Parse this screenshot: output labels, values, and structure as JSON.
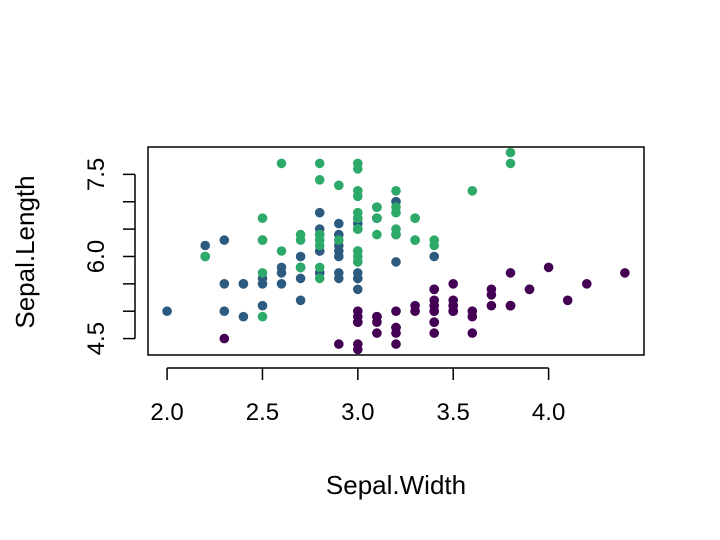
{
  "chart_data": {
    "type": "scatter",
    "title": "",
    "xlabel": "Sepal.Width",
    "ylabel": "Sepal.Length",
    "xlim": [
      1.9,
      4.5
    ],
    "ylim": [
      4.2,
      8.0
    ],
    "x_ticks": [
      "2.0",
      "2.5",
      "3.0",
      "3.5",
      "4.0"
    ],
    "y_ticks": [
      "4.5",
      "6.0",
      "7.5"
    ],
    "grid": false,
    "legend": "none",
    "series": [
      {
        "color": "#440154",
        "points": [
          [
            3.5,
            5.1
          ],
          [
            3.0,
            4.9
          ],
          [
            3.2,
            4.7
          ],
          [
            3.1,
            4.6
          ],
          [
            3.6,
            5.0
          ],
          [
            3.9,
            5.4
          ],
          [
            3.4,
            4.6
          ],
          [
            3.4,
            5.0
          ],
          [
            2.9,
            4.4
          ],
          [
            3.1,
            4.9
          ],
          [
            3.7,
            5.4
          ],
          [
            3.4,
            4.8
          ],
          [
            3.0,
            4.8
          ],
          [
            3.0,
            4.3
          ],
          [
            4.0,
            5.8
          ],
          [
            4.4,
            5.7
          ],
          [
            3.9,
            5.4
          ],
          [
            3.5,
            5.1
          ],
          [
            3.8,
            5.7
          ],
          [
            3.8,
            5.1
          ],
          [
            3.4,
            5.4
          ],
          [
            3.7,
            5.1
          ],
          [
            3.6,
            4.6
          ],
          [
            3.3,
            5.1
          ],
          [
            3.4,
            4.8
          ],
          [
            3.0,
            5.0
          ],
          [
            3.4,
            5.0
          ],
          [
            3.5,
            5.2
          ],
          [
            3.4,
            5.2
          ],
          [
            3.2,
            4.7
          ],
          [
            3.1,
            4.8
          ],
          [
            3.4,
            5.4
          ],
          [
            4.1,
            5.2
          ],
          [
            4.2,
            5.5
          ],
          [
            3.1,
            4.9
          ],
          [
            3.2,
            5.0
          ],
          [
            3.5,
            5.5
          ],
          [
            3.6,
            4.9
          ],
          [
            3.0,
            4.4
          ],
          [
            3.4,
            5.1
          ],
          [
            3.5,
            5.0
          ],
          [
            2.3,
            4.5
          ],
          [
            3.2,
            4.4
          ],
          [
            3.5,
            5.0
          ],
          [
            3.8,
            5.1
          ],
          [
            3.0,
            4.8
          ],
          [
            3.8,
            5.1
          ],
          [
            3.2,
            4.6
          ],
          [
            3.7,
            5.3
          ],
          [
            3.3,
            5.0
          ]
        ]
      },
      {
        "color": "#2C5B7F",
        "points": [
          [
            3.2,
            7.0
          ],
          [
            3.2,
            6.4
          ],
          [
            3.1,
            6.9
          ],
          [
            2.3,
            5.5
          ],
          [
            2.8,
            6.5
          ],
          [
            2.8,
            5.7
          ],
          [
            3.3,
            6.3
          ],
          [
            2.4,
            4.9
          ],
          [
            2.9,
            6.6
          ],
          [
            2.7,
            5.2
          ],
          [
            2.0,
            5.0
          ],
          [
            3.0,
            5.9
          ],
          [
            2.2,
            6.0
          ],
          [
            2.9,
            6.1
          ],
          [
            2.9,
            5.6
          ],
          [
            3.1,
            6.7
          ],
          [
            3.0,
            5.6
          ],
          [
            2.7,
            5.8
          ],
          [
            2.2,
            6.2
          ],
          [
            2.5,
            5.6
          ],
          [
            3.2,
            5.9
          ],
          [
            2.8,
            6.1
          ],
          [
            2.5,
            6.3
          ],
          [
            2.8,
            6.1
          ],
          [
            2.9,
            6.4
          ],
          [
            3.0,
            6.6
          ],
          [
            2.8,
            6.8
          ],
          [
            3.0,
            6.7
          ],
          [
            2.9,
            6.0
          ],
          [
            2.6,
            5.7
          ],
          [
            2.4,
            5.5
          ],
          [
            2.4,
            5.5
          ],
          [
            2.7,
            5.8
          ],
          [
            2.7,
            6.0
          ],
          [
            3.0,
            5.4
          ],
          [
            3.4,
            6.0
          ],
          [
            3.1,
            6.7
          ],
          [
            2.3,
            6.3
          ],
          [
            3.0,
            5.6
          ],
          [
            2.5,
            5.5
          ],
          [
            2.6,
            5.5
          ],
          [
            3.0,
            6.1
          ],
          [
            2.6,
            5.8
          ],
          [
            2.3,
            5.0
          ],
          [
            2.7,
            5.6
          ],
          [
            3.0,
            5.7
          ],
          [
            2.9,
            5.7
          ],
          [
            2.9,
            6.2
          ],
          [
            2.5,
            5.1
          ],
          [
            2.8,
            5.7
          ]
        ]
      },
      {
        "color": "#2DAA6A",
        "points": [
          [
            3.3,
            6.3
          ],
          [
            2.7,
            5.8
          ],
          [
            3.0,
            7.1
          ],
          [
            2.9,
            6.3
          ],
          [
            3.0,
            6.5
          ],
          [
            3.0,
            7.6
          ],
          [
            2.5,
            4.9
          ],
          [
            2.9,
            7.3
          ],
          [
            2.5,
            6.7
          ],
          [
            3.6,
            7.2
          ],
          [
            3.2,
            6.5
          ],
          [
            2.7,
            6.4
          ],
          [
            3.0,
            6.8
          ],
          [
            2.5,
            5.7
          ],
          [
            2.8,
            5.8
          ],
          [
            3.2,
            6.4
          ],
          [
            3.0,
            6.5
          ],
          [
            3.8,
            7.7
          ],
          [
            2.6,
            7.7
          ],
          [
            2.2,
            6.0
          ],
          [
            3.2,
            6.9
          ],
          [
            2.8,
            5.6
          ],
          [
            2.8,
            7.7
          ],
          [
            2.7,
            6.3
          ],
          [
            3.3,
            6.7
          ],
          [
            3.2,
            7.2
          ],
          [
            2.8,
            6.2
          ],
          [
            3.0,
            6.1
          ],
          [
            2.8,
            6.4
          ],
          [
            3.0,
            7.2
          ],
          [
            2.8,
            7.4
          ],
          [
            3.8,
            7.9
          ],
          [
            2.8,
            6.4
          ],
          [
            2.8,
            6.3
          ],
          [
            2.6,
            6.1
          ],
          [
            3.0,
            7.7
          ],
          [
            3.4,
            6.3
          ],
          [
            3.1,
            6.4
          ],
          [
            3.0,
            6.0
          ],
          [
            3.1,
            6.9
          ],
          [
            3.1,
            6.7
          ],
          [
            3.1,
            6.9
          ],
          [
            2.7,
            5.8
          ],
          [
            3.2,
            6.8
          ],
          [
            3.3,
            6.7
          ],
          [
            3.0,
            6.7
          ],
          [
            2.5,
            6.3
          ],
          [
            3.0,
            6.5
          ],
          [
            3.4,
            6.2
          ],
          [
            3.0,
            5.9
          ]
        ]
      }
    ]
  }
}
